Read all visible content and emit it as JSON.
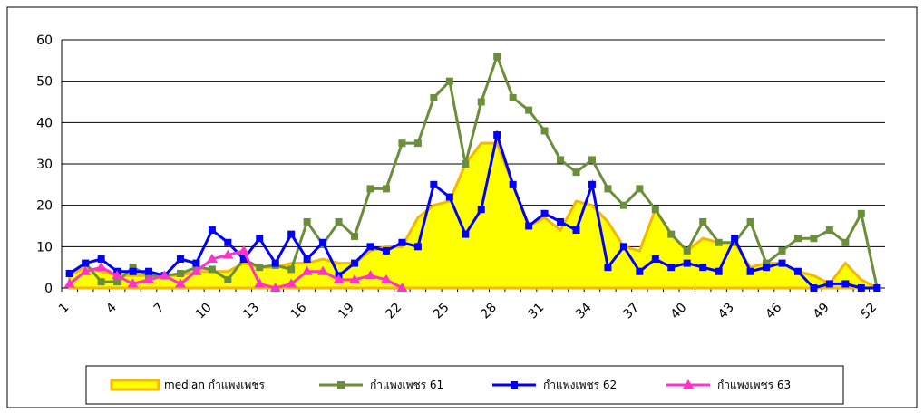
{
  "chart_data": {
    "type": "line",
    "categories": [
      "1",
      null,
      null,
      "4",
      null,
      null,
      "7",
      null,
      null,
      "10",
      null,
      null,
      "13",
      null,
      null,
      "16",
      null,
      null,
      "19",
      null,
      null,
      "22",
      null,
      null,
      "25",
      null,
      null,
      "28",
      null,
      null,
      "31",
      null,
      null,
      "34",
      null,
      null,
      "37",
      null,
      null,
      "40",
      null,
      null,
      "43",
      null,
      null,
      "46",
      null,
      null,
      "49",
      null,
      null,
      "52"
    ],
    "ylim": [
      0,
      60
    ],
    "yticks": [
      0,
      10,
      20,
      30,
      40,
      50,
      60
    ],
    "grid": true,
    "legend": "bottom",
    "series": [
      {
        "name": "median กำแพงเพชร",
        "color": "#ffff00",
        "marker": "area",
        "values": [
          3,
          5,
          4,
          3,
          3,
          3,
          3,
          3,
          4,
          4,
          4,
          6,
          5,
          5,
          6,
          6,
          7,
          6,
          6,
          9,
          10,
          10,
          17,
          20,
          21,
          30,
          35,
          35,
          25,
          15,
          17,
          14,
          21,
          20,
          16,
          10,
          9,
          19,
          13,
          9,
          12,
          11,
          11,
          5,
          6,
          6,
          4,
          3,
          1,
          6,
          2,
          0
        ]
      },
      {
        "name": "กำแพงเพชร 61",
        "color": "#6b8e3a",
        "marker": "square",
        "values": [
          3.5,
          6,
          1.5,
          1.5,
          5,
          3,
          3,
          3.5,
          5,
          4.5,
          2,
          7,
          5,
          5.5,
          4.5,
          16,
          10.5,
          16,
          12.5,
          24,
          24,
          35,
          35,
          46,
          50,
          30,
          45,
          56,
          46,
          43,
          38,
          31,
          28,
          31,
          24,
          20,
          24,
          19,
          13,
          9,
          16,
          11,
          11,
          16,
          6,
          9,
          12,
          12,
          14,
          11,
          18,
          0
        ]
      },
      {
        "name": "กำแพงเพชร 62",
        "color": "#0000ff",
        "marker": "square",
        "values": [
          3.5,
          6,
          7,
          4,
          4,
          4,
          3,
          7,
          6,
          14,
          11,
          7,
          12,
          6,
          13,
          7,
          11,
          3,
          6,
          10,
          9,
          11,
          10,
          25,
          22,
          13,
          19,
          37,
          25,
          15,
          18,
          16,
          14,
          25,
          5,
          10,
          4,
          7,
          5,
          6,
          5,
          4,
          12,
          4,
          5,
          6,
          4,
          0,
          1,
          1,
          0,
          0
        ]
      },
      {
        "name": "กำแพงเพชร 63",
        "color": "#ff33cc",
        "marker": "triangle",
        "values": [
          1,
          4,
          5,
          3,
          1,
          2,
          3,
          1,
          4,
          7,
          8,
          9,
          1,
          0,
          1,
          4,
          4,
          2,
          2,
          3,
          2,
          0,
          null,
          null,
          null,
          null,
          null,
          null,
          null,
          null,
          null,
          null,
          null,
          null,
          null,
          null,
          null,
          null,
          null,
          null,
          null,
          null,
          null,
          null,
          null,
          null,
          null,
          null,
          null,
          null,
          null,
          null
        ]
      }
    ]
  }
}
